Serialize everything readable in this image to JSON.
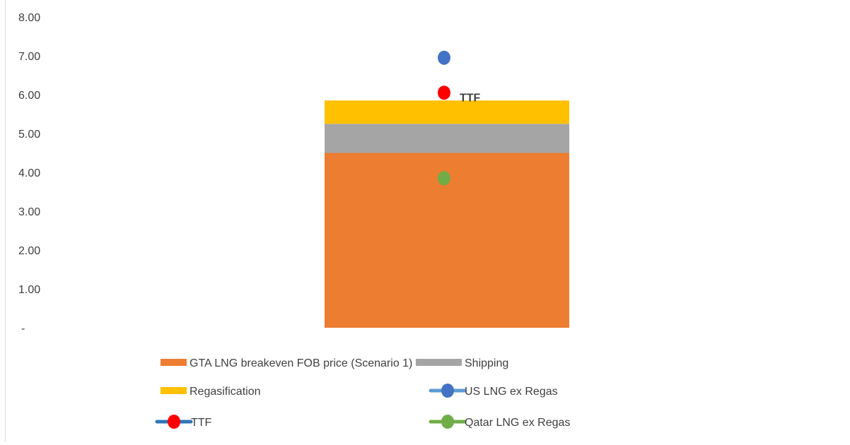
{
  "chart_data": {
    "type": "bar",
    "stacked": true,
    "categories": [
      ""
    ],
    "ylim": [
      0,
      8
    ],
    "yticks": [
      0,
      1,
      2,
      3,
      4,
      5,
      6,
      7,
      8
    ],
    "ytick_labels": [
      "-",
      "1.00",
      "2.00",
      "3.00",
      "4.00",
      "5.00",
      "6.00",
      "7.00",
      "8.00"
    ],
    "grid": false,
    "legend_position": "bottom",
    "series": [
      {
        "name": "GTA LNG breakeven FOB price (Scenario 1)",
        "kind": "bar",
        "values": [
          4.5
        ],
        "color": "#ED7D31"
      },
      {
        "name": "Shipping",
        "kind": "bar",
        "values": [
          0.75
        ],
        "color": "#A5A5A5"
      },
      {
        "name": "Regasification",
        "kind": "bar",
        "values": [
          0.6
        ],
        "color": "#FFC000"
      },
      {
        "name": "US LNG ex Regas",
        "kind": "marker",
        "values": [
          6.95
        ],
        "color": "#4472C4",
        "line_color": "#5B9BD5"
      },
      {
        "name": "TTF",
        "kind": "marker",
        "values": [
          6.05
        ],
        "color": "#FF0000",
        "line_color": "#2E75B6",
        "label": "TTF"
      },
      {
        "name": "Qatar LNG ex Regas",
        "kind": "marker",
        "values": [
          3.85
        ],
        "color": "#70AD47",
        "line_color": "#70AD47"
      }
    ]
  }
}
